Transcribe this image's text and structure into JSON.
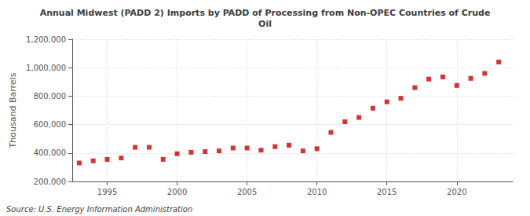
{
  "chart_data": {
    "type": "scatter",
    "title": "Annual Midwest (PADD 2) Imports by PADD of Processing from Non-OPEC Countries of Crude\nOil",
    "ylabel": "Thousand Barrels",
    "source": "Source: U.S. Energy Information Administration",
    "x": [
      1993,
      1994,
      1995,
      1996,
      1997,
      1998,
      1999,
      2000,
      2001,
      2002,
      2003,
      2004,
      2005,
      2006,
      2007,
      2008,
      2009,
      2010,
      2011,
      2012,
      2013,
      2014,
      2015,
      2016,
      2017,
      2018,
      2019,
      2020,
      2021,
      2022,
      2023
    ],
    "values": [
      330000,
      345000,
      355000,
      365000,
      440000,
      440000,
      355000,
      395000,
      405000,
      410000,
      415000,
      435000,
      435000,
      420000,
      445000,
      455000,
      415000,
      430000,
      545000,
      620000,
      650000,
      715000,
      760000,
      785000,
      860000,
      920000,
      935000,
      875000,
      925000,
      960000,
      1040000
    ],
    "color": "#cc0000",
    "marker": "square",
    "xlim": [
      1992.5,
      2024
    ],
    "xticks": [
      1995,
      2000,
      2005,
      2010,
      2015,
      2020
    ],
    "ylim": [
      200000,
      1200000
    ],
    "yticks": [
      {
        "value": 200000,
        "label": "200,000"
      },
      {
        "value": 400000,
        "label": "400,000"
      },
      {
        "value": 600000,
        "label": "600,000"
      },
      {
        "value": 800000,
        "label": "800,000"
      },
      {
        "value": 1000000,
        "label": "1,000,000"
      },
      {
        "value": 1200000,
        "label": "1,200,000"
      }
    ],
    "grid": true
  }
}
